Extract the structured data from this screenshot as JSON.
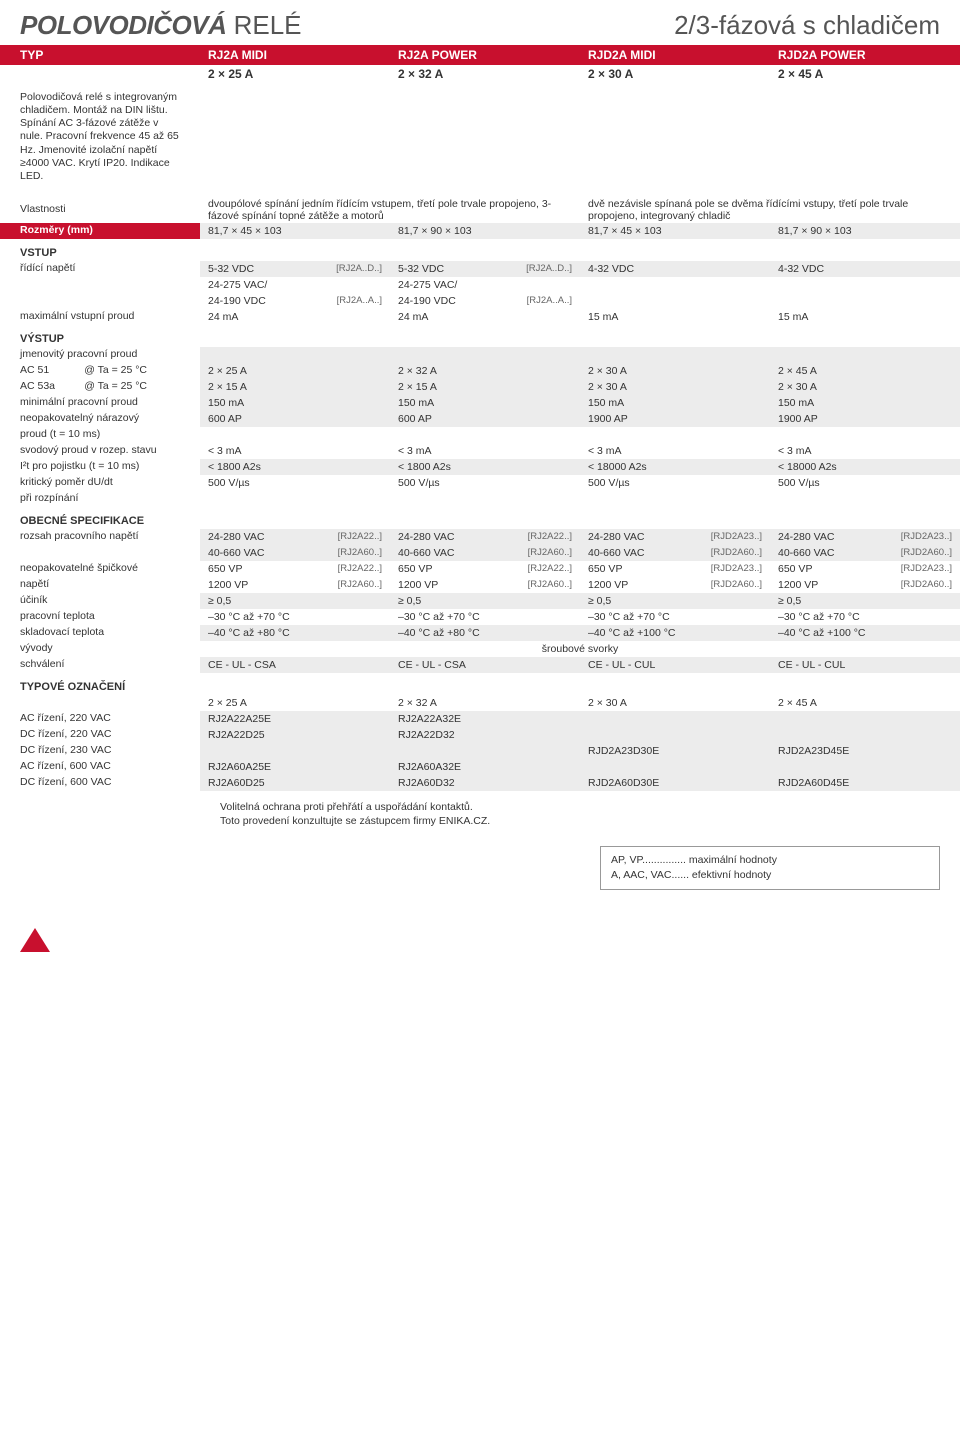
{
  "header": {
    "title_bold": "POLOVODIČOVÁ",
    "title_rest": " RELÉ",
    "title_right": "2/3-fázová s chladičem"
  },
  "type_bar": {
    "label": "TYP",
    "cols": [
      "RJ2A MIDI",
      "RJ2A POWER",
      "RJD2A MIDI",
      "RJD2A POWER"
    ]
  },
  "subheader": [
    "2 × 25 A",
    "2 × 32 A",
    "2 × 30 A",
    "2 × 45 A"
  ],
  "intro": "Polovodičová relé s integrovaným chladičem. Montáž na DIN lištu. Spínání AC 3-fázové zátěže v nule. Pracovní frekvence 45 až 65 Hz. Jmenovité izolační napětí ≥4000 VAC. Krytí IP20. Indikace LED.",
  "vlastnosti": {
    "label": "Vlastnosti",
    "left": "dvoupólové spínání jedním řídícím vstupem, třetí pole trvale propojeno, 3-fázové spínání topné zátěže a motorů",
    "right": "dvě nezávisle spínaná pole se dvěma řídícími vstupy, třetí pole trvale propojeno, integrovaný chladič"
  },
  "rozmery": {
    "label": "Rozměry (mm)",
    "vals": [
      "81,7 × 45 × 103",
      "81,7 × 90 × 103",
      "81,7 × 45 × 103",
      "81,7 × 90 × 103"
    ]
  },
  "vstup": {
    "heading": "VSTUP",
    "rows": [
      {
        "label": "řídící napětí",
        "cells": [
          {
            "v": "5-32 VDC",
            "c": "[RJ2A..D..]"
          },
          {
            "v": "5-32 VDC",
            "c": "[RJ2A..D..]"
          },
          {
            "v": "4-32 VDC",
            "c": ""
          },
          {
            "v": "4-32 VDC",
            "c": ""
          }
        ],
        "shade": true
      },
      {
        "label": "",
        "cells": [
          {
            "v": "24-275 VAC/",
            "c": ""
          },
          {
            "v": "24-275 VAC/",
            "c": ""
          },
          {
            "v": "",
            "c": ""
          },
          {
            "v": "",
            "c": ""
          }
        ],
        "shade": false
      },
      {
        "label": "",
        "cells": [
          {
            "v": "24-190 VDC",
            "c": "[RJ2A..A..]"
          },
          {
            "v": "24-190 VDC",
            "c": "[RJ2A..A..]"
          },
          {
            "v": "",
            "c": ""
          },
          {
            "v": "",
            "c": ""
          }
        ],
        "shade": false
      },
      {
        "label": "maximální vstupní proud",
        "cells": [
          {
            "v": "24 mA",
            "c": ""
          },
          {
            "v": "24 mA",
            "c": ""
          },
          {
            "v": "15 mA",
            "c": ""
          },
          {
            "v": "15 mA",
            "c": ""
          }
        ],
        "shade": false
      }
    ]
  },
  "vystup": {
    "heading": "VÝSTUP",
    "rows": [
      {
        "label": "jmenovitý pracovní proud",
        "cells": [
          {
            "v": "",
            "c": ""
          },
          {
            "v": "",
            "c": ""
          },
          {
            "v": "",
            "c": ""
          },
          {
            "v": "",
            "c": ""
          }
        ],
        "shade": true
      },
      {
        "label": "AC 51            @ Ta = 25 °C",
        "cells": [
          {
            "v": "2 × 25 A"
          },
          {
            "v": "2 × 32 A"
          },
          {
            "v": "2 × 30 A"
          },
          {
            "v": "2 × 45 A"
          }
        ],
        "shade": true
      },
      {
        "label": "AC 53a          @ Ta = 25 °C",
        "cells": [
          {
            "v": "2 × 15 A"
          },
          {
            "v": "2 × 15 A"
          },
          {
            "v": "2 × 30 A"
          },
          {
            "v": "2 × 30 A"
          }
        ],
        "shade": true
      },
      {
        "label": "minimální pracovní proud",
        "cells": [
          {
            "v": "150 mA"
          },
          {
            "v": "150 mA"
          },
          {
            "v": "150 mA"
          },
          {
            "v": "150 mA"
          }
        ],
        "shade": true
      },
      {
        "label": "neopakovatelný nárazový",
        "cells": [
          {
            "v": "600 AP"
          },
          {
            "v": "600 AP"
          },
          {
            "v": "1900 AP"
          },
          {
            "v": "1900 AP"
          }
        ],
        "shade": true
      },
      {
        "label": "proud (t = 10 ms)",
        "cells": [
          {
            "v": ""
          },
          {
            "v": ""
          },
          {
            "v": ""
          },
          {
            "v": ""
          }
        ],
        "shade": false
      },
      {
        "label": "svodový proud v rozep. stavu",
        "cells": [
          {
            "v": "< 3 mA"
          },
          {
            "v": "< 3 mA"
          },
          {
            "v": "< 3 mA"
          },
          {
            "v": "< 3 mA"
          }
        ],
        "shade": false
      },
      {
        "label": "I²t pro pojistku (t = 10 ms)",
        "cells": [
          {
            "v": "< 1800 A2s"
          },
          {
            "v": "< 1800 A2s"
          },
          {
            "v": "< 18000 A2s"
          },
          {
            "v": "< 18000 A2s"
          }
        ],
        "shade": true
      },
      {
        "label": "kritický poměr dU/dt",
        "cells": [
          {
            "v": "500 V/µs"
          },
          {
            "v": "500 V/µs"
          },
          {
            "v": "500 V/µs"
          },
          {
            "v": "500 V/µs"
          }
        ],
        "shade": false
      },
      {
        "label": "při rozpínání",
        "cells": [
          {
            "v": ""
          },
          {
            "v": ""
          },
          {
            "v": ""
          },
          {
            "v": ""
          }
        ],
        "shade": false
      }
    ]
  },
  "obecne": {
    "heading": "OBECNÉ SPECIFIKACE",
    "rows": [
      {
        "label": "rozsah pracovního napětí",
        "cells": [
          {
            "v": "24-280 VAC",
            "c": "[RJ2A22..]"
          },
          {
            "v": "24-280 VAC",
            "c": "[RJ2A22..]"
          },
          {
            "v": "24-280 VAC",
            "c": "[RJD2A23..]"
          },
          {
            "v": "24-280 VAC",
            "c": "[RJD2A23..]"
          }
        ],
        "shade": true
      },
      {
        "label": "",
        "cells": [
          {
            "v": "40-660 VAC",
            "c": "[RJ2A60..]"
          },
          {
            "v": "40-660 VAC",
            "c": "[RJ2A60..]"
          },
          {
            "v": "40-660 VAC",
            "c": "[RJD2A60..]"
          },
          {
            "v": "40-660 VAC",
            "c": "[RJD2A60..]"
          }
        ],
        "shade": true
      },
      {
        "label": "neopakovatelné špičkové",
        "cells": [
          {
            "v": "650 VP",
            "c": "[RJ2A22..]"
          },
          {
            "v": "650 VP",
            "c": "[RJ2A22..]"
          },
          {
            "v": "650 VP",
            "c": "[RJD2A23..]"
          },
          {
            "v": "650 VP",
            "c": "[RJD2A23..]"
          }
        ],
        "shade": false
      },
      {
        "label": "napětí",
        "cells": [
          {
            "v": "1200 VP",
            "c": "[RJ2A60..]"
          },
          {
            "v": "1200 VP",
            "c": "[RJ2A60..]"
          },
          {
            "v": "1200 VP",
            "c": "[RJD2A60..]"
          },
          {
            "v": "1200 VP",
            "c": "[RJD2A60..]"
          }
        ],
        "shade": false
      },
      {
        "label": "účiník",
        "cells": [
          {
            "v": "≥ 0,5"
          },
          {
            "v": "≥ 0,5"
          },
          {
            "v": "≥ 0,5"
          },
          {
            "v": "≥ 0,5"
          }
        ],
        "shade": true
      },
      {
        "label": "pracovní teplota",
        "cells": [
          {
            "v": "–30 °C až +70 °C"
          },
          {
            "v": "–30 °C až +70 °C"
          },
          {
            "v": "–30 °C až +70 °C"
          },
          {
            "v": "–30 °C až +70 °C"
          }
        ],
        "shade": false
      },
      {
        "label": "skladovací teplota",
        "cells": [
          {
            "v": "–40 °C až +80 °C"
          },
          {
            "v": "–40 °C až +80 °C"
          },
          {
            "v": "–40 °C až +100 °C"
          },
          {
            "v": "–40 °C až +100 °C"
          }
        ],
        "shade": true
      },
      {
        "label": "vývody",
        "span": "šroubové svorky",
        "shade": false
      },
      {
        "label": "schválení",
        "cells": [
          {
            "v": "CE - UL - CSA"
          },
          {
            "v": "CE - UL - CSA"
          },
          {
            "v": "CE - UL - CUL"
          },
          {
            "v": "CE - UL - CUL"
          }
        ],
        "shade": true
      }
    ]
  },
  "typove": {
    "heading": "TYPOVÉ OZNAČENÍ",
    "header_row": [
      "2 × 25 A",
      "2 × 32 A",
      "2 × 30 A",
      "2 × 45 A"
    ],
    "rows": [
      {
        "label": "AC řízení, 220 VAC",
        "cells": [
          {
            "v": "RJ2A22A25E"
          },
          {
            "v": "RJ2A22A32E"
          },
          {
            "v": ""
          },
          {
            "v": ""
          }
        ],
        "shade": true
      },
      {
        "label": "DC řízení, 220 VAC",
        "cells": [
          {
            "v": "RJ2A22D25"
          },
          {
            "v": "RJ2A22D32"
          },
          {
            "v": ""
          },
          {
            "v": ""
          }
        ],
        "shade": true
      },
      {
        "label": "DC řízení, 230 VAC",
        "cells": [
          {
            "v": ""
          },
          {
            "v": ""
          },
          {
            "v": "RJD2A23D30E"
          },
          {
            "v": "RJD2A23D45E"
          }
        ],
        "shade": true
      },
      {
        "label": "AC řízení, 600 VAC",
        "cells": [
          {
            "v": "RJ2A60A25E"
          },
          {
            "v": "RJ2A60A32E"
          },
          {
            "v": ""
          },
          {
            "v": ""
          }
        ],
        "shade": true
      },
      {
        "label": "DC řízení, 600 VAC",
        "cells": [
          {
            "v": "RJ2A60D25"
          },
          {
            "v": "RJ2A60D32"
          },
          {
            "v": "RJD2A60D30E"
          },
          {
            "v": "RJD2A60D45E"
          }
        ],
        "shade": true
      }
    ]
  },
  "note": "Volitelná ochrana proti přehřátí a uspořádání kontaktů.\nToto provedení konzultujte se zástupcem firmy ENIKA.CZ.",
  "legend": {
    "l1": "AP, VP............... maximální hodnoty",
    "l2": "A, AAC, VAC...... efektivní hodnoty"
  }
}
